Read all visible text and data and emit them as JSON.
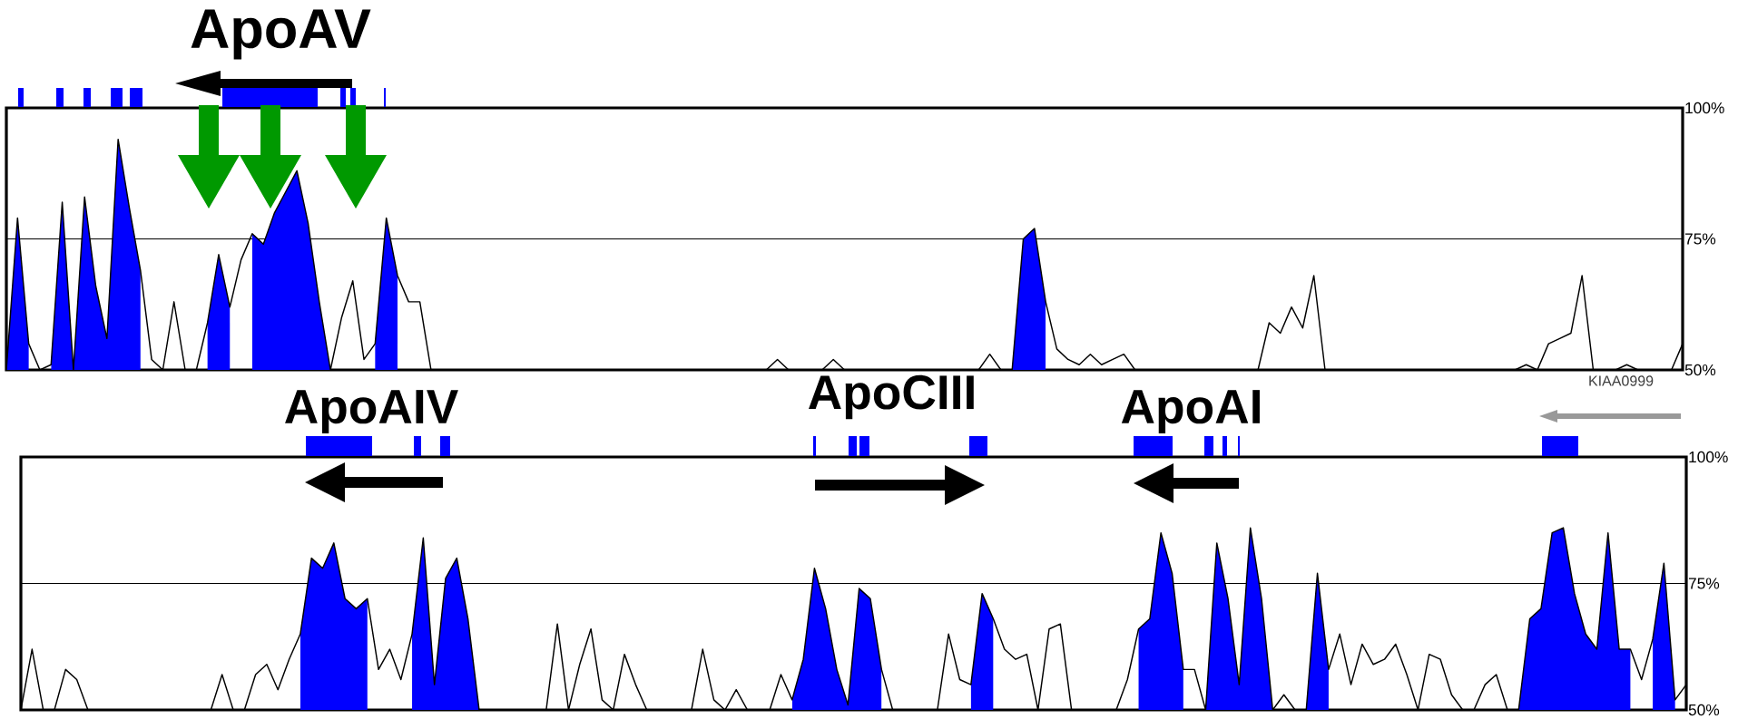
{
  "chart_data": [
    {
      "type": "line",
      "categories": [
        null,
        null,
        null,
        null,
        null,
        null,
        null,
        null,
        null,
        null,
        null,
        null,
        null,
        null,
        null,
        null,
        null,
        null,
        null,
        null,
        null,
        null,
        null,
        null,
        null,
        null,
        null,
        null,
        null,
        null,
        null,
        null,
        null,
        null,
        null,
        null,
        null,
        null,
        null,
        null,
        null,
        null,
        null,
        null,
        null,
        null,
        null,
        null,
        null,
        null,
        null,
        null,
        null,
        null,
        null,
        null,
        null,
        null,
        null,
        null,
        null,
        null,
        null,
        null,
        null,
        null,
        null,
        null,
        null,
        null,
        null,
        null,
        null,
        null,
        null,
        null,
        null,
        null,
        null,
        null,
        null,
        null,
        null,
        null,
        null,
        null,
        null,
        null,
        null,
        null,
        null,
        null,
        null,
        null,
        null,
        null,
        null,
        null,
        null,
        null,
        null,
        null,
        null,
        null,
        null,
        null,
        null,
        null,
        null,
        null,
        null,
        null,
        null,
        null,
        null,
        null,
        null,
        null,
        null,
        null,
        null,
        null,
        null,
        null,
        null,
        null,
        null,
        null,
        null,
        null,
        null,
        null,
        null,
        null,
        null,
        null,
        null,
        null,
        null,
        null,
        null,
        null,
        null,
        null,
        null,
        null,
        null,
        null,
        null,
        null,
        null
      ],
      "series": [
        {
          "color": "#000000",
          "values": [
            50,
            79,
            55,
            50,
            51,
            82,
            50,
            83,
            66,
            56,
            94,
            81,
            69,
            52,
            50,
            63,
            50,
            50,
            59,
            72,
            62,
            71,
            76,
            74,
            80,
            84,
            88,
            78,
            63,
            50,
            60,
            67,
            52,
            55,
            79,
            68,
            63,
            63,
            50,
            50,
            50,
            50,
            50,
            50,
            50,
            50,
            50,
            50,
            50,
            50,
            50,
            50,
            50,
            50,
            50,
            50,
            50,
            50,
            50,
            50,
            50,
            50,
            50,
            50,
            50,
            50,
            50,
            50,
            50,
            52,
            50,
            50,
            50,
            50,
            52,
            50,
            50,
            50,
            50,
            50,
            50,
            50,
            50,
            50,
            50,
            50,
            50,
            50,
            53,
            50,
            50,
            75,
            77,
            63,
            54,
            52,
            51,
            53,
            51,
            52,
            53,
            50,
            50,
            50,
            50,
            50,
            50,
            50,
            50,
            50,
            50,
            50,
            50,
            59,
            57,
            62,
            58,
            68,
            50,
            50,
            50,
            50,
            50,
            50,
            50,
            50,
            50,
            50,
            50,
            50,
            50,
            50,
            50,
            50,
            50,
            50,
            51,
            50,
            55,
            56,
            57,
            68,
            50,
            50,
            50,
            51,
            50,
            50,
            50,
            50,
            55
          ]
        },
        {
          "type": "area",
          "color": "#0000ff",
          "values": [
            50,
            79,
            55,
            null,
            51,
            82,
            50,
            83,
            66,
            56,
            94,
            81,
            69,
            null,
            null,
            null,
            null,
            null,
            59,
            72,
            62,
            null,
            76,
            74,
            80,
            84,
            88,
            78,
            63,
            50,
            null,
            null,
            null,
            55,
            79,
            68,
            null,
            null,
            null,
            null,
            null,
            null,
            null,
            null,
            null,
            null,
            null,
            null,
            null,
            null,
            null,
            null,
            null,
            null,
            null,
            null,
            null,
            null,
            null,
            null,
            null,
            null,
            null,
            null,
            null,
            null,
            null,
            null,
            null,
            null,
            null,
            null,
            null,
            null,
            null,
            null,
            null,
            null,
            null,
            null,
            null,
            null,
            null,
            null,
            null,
            null,
            null,
            null,
            null,
            null,
            50,
            75,
            77,
            63,
            null,
            null,
            null,
            null,
            null,
            null,
            null,
            null,
            null,
            null,
            null,
            null,
            null,
            null,
            null,
            null,
            null,
            null,
            null,
            null,
            null,
            null,
            null,
            null,
            null,
            null,
            null,
            null,
            null,
            null,
            null,
            null,
            null,
            null,
            null,
            null,
            null,
            null,
            null,
            null,
            null,
            null,
            null,
            null,
            null,
            null,
            null,
            null,
            null,
            null,
            null,
            null,
            null,
            null,
            null,
            null,
            null
          ]
        }
      ],
      "ylim": [
        50,
        100
      ],
      "yticks": [
        {
          "value": 50,
          "label": "50%"
        },
        {
          "value": 75,
          "label": "75%"
        },
        {
          "value": 100,
          "label": "100%"
        }
      ],
      "grid": "y",
      "tick_labels": "y",
      "annotations": [
        "ApoAV"
      ]
    },
    {
      "type": "line",
      "categories": [
        null,
        null,
        null,
        null,
        null,
        null,
        null,
        null,
        null,
        null,
        null,
        null,
        null,
        null,
        null,
        null,
        null,
        null,
        null,
        null,
        null,
        null,
        null,
        null,
        null,
        null,
        null,
        null,
        null,
        null,
        null,
        null,
        null,
        null,
        null,
        null,
        null,
        null,
        null,
        null,
        null,
        null,
        null,
        null,
        null,
        null,
        null,
        null,
        null,
        null,
        null,
        null,
        null,
        null,
        null,
        null,
        null,
        null,
        null,
        null,
        null,
        null,
        null,
        null,
        null,
        null,
        null,
        null,
        null,
        null,
        null,
        null,
        null,
        null,
        null,
        null,
        null,
        null,
        null,
        null,
        null,
        null,
        null,
        null,
        null,
        null,
        null,
        null,
        null,
        null,
        null,
        null,
        null,
        null,
        null,
        null,
        null,
        null,
        null,
        null,
        null,
        null,
        null,
        null,
        null,
        null,
        null,
        null,
        null,
        null,
        null,
        null,
        null,
        null,
        null,
        null,
        null,
        null,
        null,
        null,
        null,
        null,
        null,
        null,
        null,
        null,
        null,
        null,
        null,
        null,
        null,
        null,
        null,
        null,
        null,
        null,
        null,
        null,
        null,
        null,
        null,
        null,
        null,
        null,
        null,
        null,
        null,
        null,
        null,
        null
      ],
      "series": [
        {
          "color": "#000000",
          "values": [
            50,
            62,
            50,
            50,
            58,
            56,
            50,
            50,
            50,
            50,
            50,
            50,
            50,
            50,
            50,
            50,
            50,
            50,
            57,
            50,
            50,
            57,
            59,
            54,
            60,
            65,
            80,
            78,
            83,
            72,
            70,
            72,
            58,
            62,
            56,
            65,
            84,
            55,
            76,
            80,
            68,
            50,
            50,
            50,
            50,
            50,
            50,
            50,
            67,
            50,
            59,
            66,
            52,
            50,
            61,
            55,
            50,
            50,
            50,
            50,
            50,
            62,
            52,
            50,
            54,
            50,
            50,
            50,
            57,
            52,
            60,
            78,
            70,
            58,
            51,
            74,
            72,
            58,
            50,
            50,
            50,
            50,
            50,
            65,
            56,
            55,
            73,
            68,
            62,
            60,
            61,
            50,
            66,
            67,
            50,
            50,
            50,
            50,
            50,
            56,
            66,
            68,
            85,
            77,
            58,
            58,
            50,
            83,
            72,
            55,
            86,
            72,
            50,
            53,
            50,
            50,
            77,
            58,
            65,
            55,
            63,
            59,
            60,
            63,
            57,
            50,
            61,
            60,
            53,
            50,
            50,
            55,
            57,
            50,
            50,
            68,
            70,
            85,
            86,
            73,
            65,
            62,
            85,
            62,
            62,
            56,
            64,
            79,
            52,
            55
          ]
        },
        {
          "type": "area",
          "color": "#0000ff",
          "values": [
            null,
            null,
            null,
            null,
            null,
            null,
            null,
            null,
            null,
            null,
            null,
            null,
            null,
            null,
            null,
            null,
            null,
            null,
            null,
            null,
            null,
            null,
            null,
            null,
            null,
            65,
            80,
            78,
            83,
            72,
            70,
            72,
            null,
            null,
            null,
            65,
            84,
            55,
            76,
            80,
            68,
            50,
            null,
            null,
            null,
            null,
            null,
            null,
            null,
            null,
            null,
            null,
            null,
            null,
            null,
            null,
            null,
            null,
            null,
            null,
            null,
            null,
            null,
            null,
            null,
            null,
            null,
            null,
            null,
            52,
            60,
            78,
            70,
            58,
            51,
            74,
            72,
            58,
            null,
            null,
            null,
            null,
            null,
            null,
            null,
            55,
            73,
            68,
            null,
            null,
            null,
            null,
            null,
            null,
            null,
            null,
            null,
            null,
            null,
            null,
            66,
            68,
            85,
            77,
            58,
            null,
            50,
            83,
            72,
            55,
            86,
            72,
            50,
            null,
            null,
            50,
            77,
            58,
            null,
            null,
            null,
            null,
            null,
            null,
            null,
            null,
            null,
            null,
            null,
            null,
            null,
            null,
            null,
            null,
            50,
            68,
            70,
            85,
            86,
            73,
            65,
            62,
            85,
            62,
            62,
            null,
            64,
            79,
            52,
            null
          ]
        }
      ],
      "ylim": [
        50,
        100
      ],
      "yticks": [
        {
          "value": 50,
          "label": "50%"
        },
        {
          "value": 75,
          "label": "75%"
        },
        {
          "value": 100,
          "label": "100%"
        }
      ],
      "grid": "y",
      "tick_labels": "y",
      "annotations": [
        "ApoAIV",
        "ApoCIII",
        "ApoAI",
        "KIAA0999"
      ]
    }
  ]
}
